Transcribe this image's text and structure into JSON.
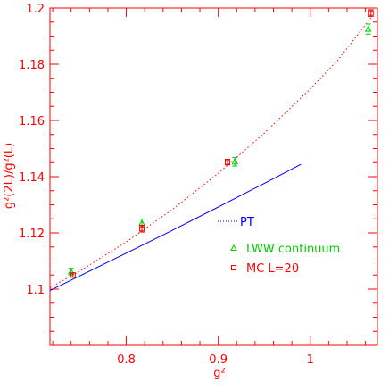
{
  "chart_data": {
    "type": "scatter",
    "xlabel": "ḡ²",
    "ylabel": "ḡ²(2L)/ḡ²(L)",
    "xlim": [
      0.717,
      1.073
    ],
    "ylim": [
      1.08,
      1.2
    ],
    "x_ticks": [
      0.8,
      0.9,
      1.0
    ],
    "x_tick_labels": [
      "0.8",
      "0.9",
      "1"
    ],
    "y_ticks": [
      1.1,
      1.12,
      1.14,
      1.16,
      1.18,
      1.2
    ],
    "y_tick_labels": [
      "1.1",
      "1.12",
      "1.14",
      "1.16",
      "1.18",
      "1.2"
    ],
    "grid": false,
    "legend_position": "right-middle",
    "pt_label": "PT",
    "series": [
      {
        "name": "LWW continuum",
        "marker": "triangle",
        "color": "#00cc00",
        "points": [
          {
            "x": 0.74,
            "y": 1.1062,
            "err": 0.0012
          },
          {
            "x": 0.817,
            "y": 1.1235,
            "err": 0.0014
          },
          {
            "x": 0.918,
            "y": 1.1453,
            "err": 0.0015
          },
          {
            "x": 1.063,
            "y": 1.1925,
            "err": 0.0018
          }
        ]
      },
      {
        "name": "MC L=20",
        "marker": "square",
        "color": "#ff0000",
        "points": [
          {
            "x": 0.742,
            "y": 1.105,
            "err": 0.0008
          },
          {
            "x": 0.817,
            "y": 1.1215,
            "err": 0.0012
          },
          {
            "x": 0.91,
            "y": 1.1452,
            "err": 0.001
          },
          {
            "x": 1.066,
            "y": 1.1982,
            "err": 0.0012
          }
        ]
      }
    ],
    "lines": [
      {
        "label": "PT",
        "style": "solid",
        "color": "#0000ff",
        "x": [
          0.717,
          0.75,
          0.8,
          0.85,
          0.9,
          0.95,
          0.99
        ],
        "y": [
          1.0995,
          1.1048,
          1.1128,
          1.1209,
          1.1292,
          1.1376,
          1.1444
        ]
      },
      {
        "label": "",
        "style": "dotted",
        "color": "#ff0000",
        "x": [
          0.717,
          0.75,
          0.8,
          0.85,
          0.9,
          0.95,
          1.0,
          1.03,
          1.066
        ],
        "y": [
          1.1005,
          1.1065,
          1.1168,
          1.1283,
          1.1412,
          1.1555,
          1.1712,
          1.1815,
          1.1965
        ]
      }
    ]
  }
}
